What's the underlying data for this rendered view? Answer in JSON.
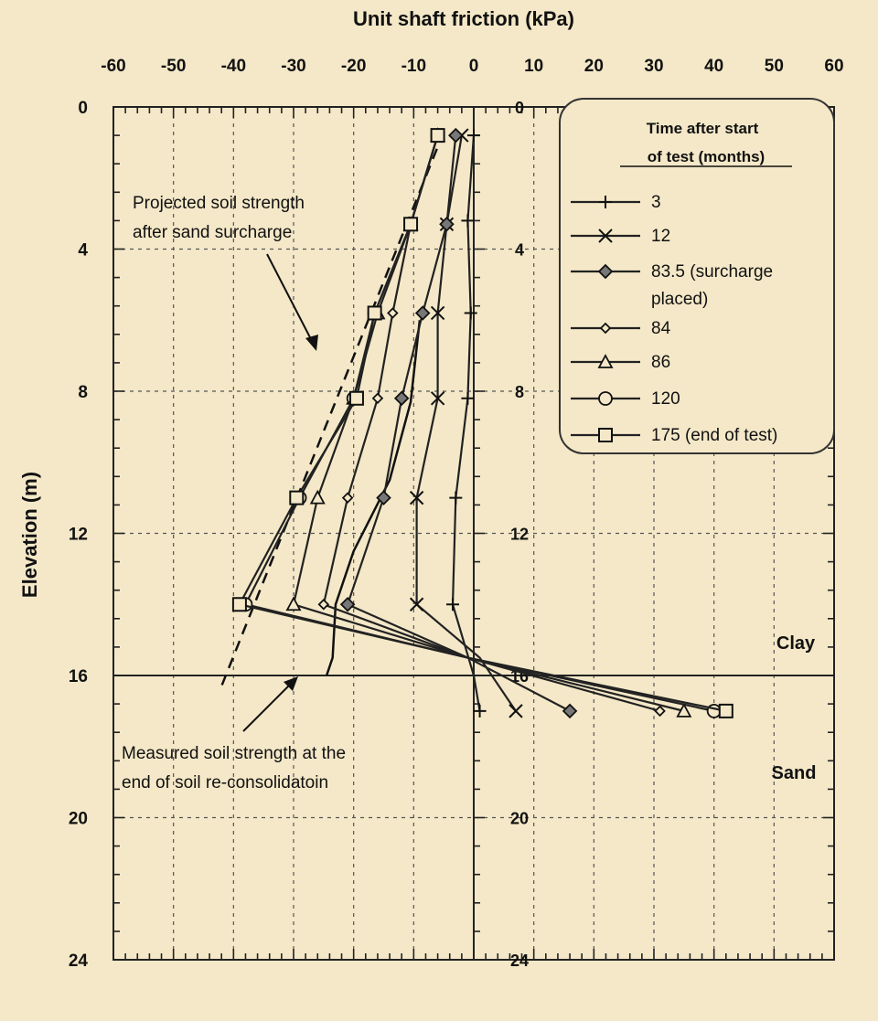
{
  "chart_data": {
    "type": "line",
    "title": "",
    "xlabel": "Unit shaft friction (kPa)",
    "ylabel": "Elevation (m)",
    "xlim": [
      -60,
      60
    ],
    "ylim": [
      0,
      24
    ],
    "y_inverted": true,
    "x_axis_position": "top",
    "x_ticks": [
      -60,
      -50,
      -40,
      -30,
      -20,
      -10,
      0,
      10,
      20,
      30,
      40,
      50,
      60
    ],
    "x_tick_labels": [
      "-60",
      "-50",
      "-40",
      "-30",
      "-20",
      "-10",
      "0",
      "10",
      "20",
      "30",
      "40",
      "50",
      "60"
    ],
    "y_ticks": [
      0,
      4,
      8,
      12,
      16,
      20,
      24
    ],
    "y_tick_labels": [
      "0",
      "4",
      "8",
      "12",
      "16",
      "20",
      "24"
    ],
    "grid": true,
    "legend": {
      "title_line1": "Time after start",
      "title_line2": "of test (months)",
      "placement": "top-right"
    },
    "series": [
      {
        "name": "3",
        "marker": "plus",
        "points": [
          [
            0,
            0.8
          ],
          [
            -1,
            3.2
          ],
          [
            -0.5,
            5.8
          ],
          [
            -1,
            8.2
          ],
          [
            -3,
            11
          ],
          [
            -3.5,
            14
          ],
          [
            0,
            16
          ],
          [
            1,
            17
          ]
        ]
      },
      {
        "name": "12",
        "marker": "x",
        "points": [
          [
            -2,
            0.8
          ],
          [
            -4.5,
            3.3
          ],
          [
            -6,
            5.8
          ],
          [
            -6,
            8.2
          ],
          [
            -9.5,
            11
          ],
          [
            -9.5,
            14
          ],
          [
            1,
            15.5
          ],
          [
            7,
            17
          ]
        ]
      },
      {
        "name": "83.5 (surcharge placed)",
        "marker": "diamond",
        "points": [
          [
            -3,
            0.8
          ],
          [
            -4.5,
            3.3
          ],
          [
            -8.5,
            5.8
          ],
          [
            -12,
            8.2
          ],
          [
            -15,
            11
          ],
          [
            -21,
            14
          ],
          [
            -1,
            15.5
          ],
          [
            16,
            17
          ]
        ]
      },
      {
        "name": "84",
        "marker": "small-diamond",
        "points": [
          [
            -6,
            0.8
          ],
          [
            -10.5,
            3.3
          ],
          [
            -13.5,
            5.8
          ],
          [
            -16,
            8.2
          ],
          [
            -21,
            11
          ],
          [
            -25,
            14
          ],
          [
            -1,
            15.5
          ],
          [
            31,
            17
          ]
        ]
      },
      {
        "name": "86",
        "marker": "triangle",
        "points": [
          [
            -6,
            0.8
          ],
          [
            -10.5,
            3.3
          ],
          [
            -16,
            5.8
          ],
          [
            -20,
            8.2
          ],
          [
            -26,
            11
          ],
          [
            -30,
            14
          ],
          [
            -1,
            15.5
          ],
          [
            35,
            17
          ]
        ]
      },
      {
        "name": "120",
        "marker": "circle",
        "points": [
          [
            -6,
            0.8
          ],
          [
            -10.5,
            3.3
          ],
          [
            -16.5,
            5.8
          ],
          [
            -20,
            8.2
          ],
          [
            -29,
            11
          ],
          [
            -38,
            14
          ],
          [
            -1,
            15.5
          ],
          [
            40,
            17
          ]
        ]
      },
      {
        "name": "175 (end of test)",
        "marker": "square",
        "points": [
          [
            -6,
            0.8
          ],
          [
            -10.5,
            3.3
          ],
          [
            -16.5,
            5.8
          ],
          [
            -19.5,
            8.2
          ],
          [
            -29.5,
            11
          ],
          [
            -39,
            14
          ],
          [
            -1,
            15.5
          ],
          [
            42,
            17
          ]
        ]
      }
    ],
    "reference_lines": {
      "projected": {
        "points": [
          [
            -5,
            0.7
          ],
          [
            -42,
            16.3
          ]
        ]
      },
      "measured": {
        "points": [
          [
            -9,
            6
          ],
          [
            -10.5,
            8.3
          ],
          [
            -14,
            10.5
          ],
          [
            -20,
            12.5
          ],
          [
            -23,
            14
          ],
          [
            -23.5,
            15.5
          ],
          [
            -24.5,
            16
          ]
        ]
      }
    },
    "annotations": {
      "projected_line1": "Projected soil strength",
      "projected_line2": "after sand surcharge",
      "measured_line1": "Measured soil strength at the",
      "measured_line2": "end of soil re-consolidatoin",
      "clay": "Clay",
      "sand": "Sand"
    },
    "clay_sand_boundary": 16
  }
}
